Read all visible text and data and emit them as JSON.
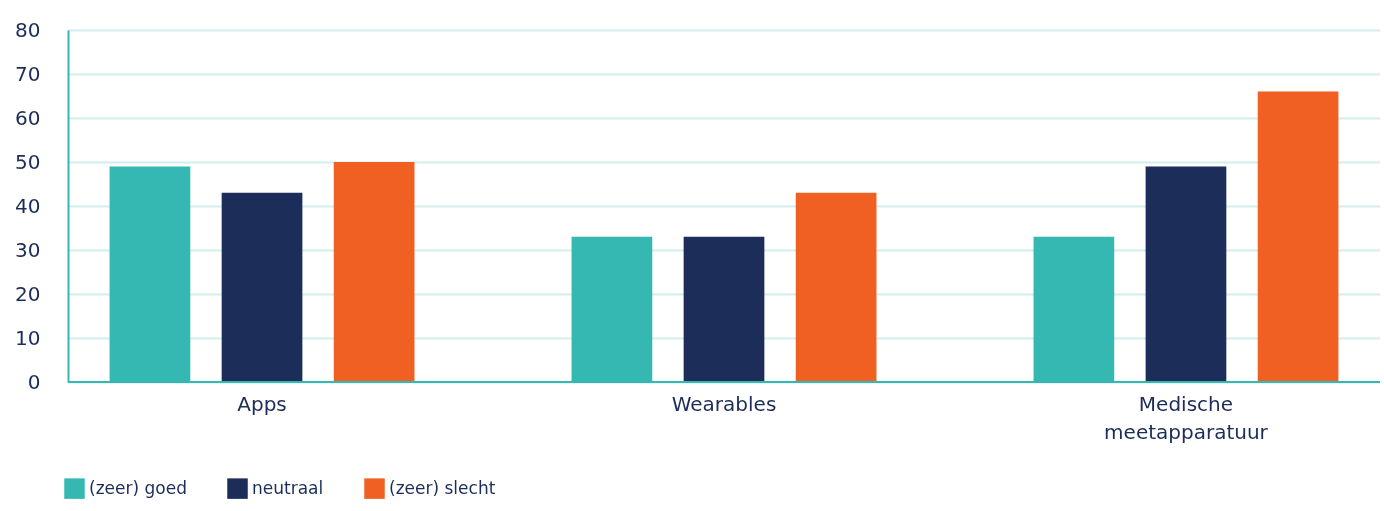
{
  "chart_data": {
    "type": "bar",
    "categories": [
      "Apps",
      "Wearables",
      "Medische meetapparatuur"
    ],
    "series": [
      {
        "name": "(zeer) goed",
        "color": "#36b8b2",
        "values": [
          49,
          33,
          33
        ]
      },
      {
        "name": "neutraal",
        "color": "#1c2d59",
        "values": [
          43,
          33,
          49
        ]
      },
      {
        "name": "(zeer) slecht",
        "color": "#f06023",
        "values": [
          50,
          43,
          66
        ]
      }
    ],
    "ylim": [
      0,
      80
    ],
    "yticks": [
      0,
      10,
      20,
      30,
      40,
      50,
      60,
      70,
      80
    ],
    "grid": "y",
    "legend": "bottom left"
  }
}
